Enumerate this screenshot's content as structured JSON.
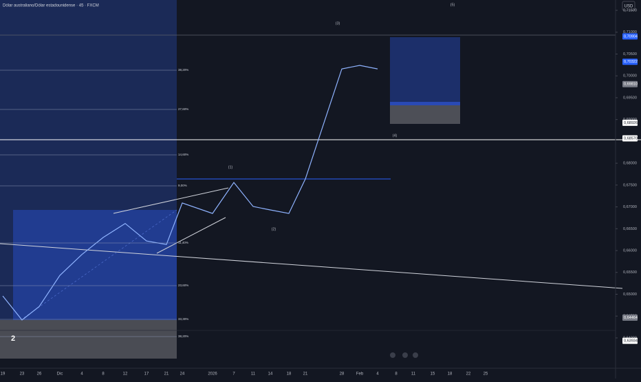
{
  "header": {
    "title": "Dólar australiano/Dólar estadounidense · 45 · FXCM",
    "currency_button": "USD"
  },
  "chart_data": {
    "type": "line",
    "color": "#8fb3ff",
    "categories": [
      "19",
      "23",
      "26",
      "Dic",
      "4",
      "8",
      "12",
      "17",
      "21",
      "24",
      "2026",
      "7",
      "11",
      "14",
      "18",
      "21",
      "28",
      "Feb",
      "4",
      "8",
      "11",
      "15",
      "18",
      "22",
      "25"
    ],
    "values": [
      0.6496,
      0.6441,
      0.6472,
      0.6543,
      0.6591,
      0.663,
      0.6662,
      0.6622,
      0.6614,
      0.6709,
      0.6685,
      0.6756,
      0.6701,
      0.6693,
      0.6685,
      0.6764,
      0.7016,
      0.7024,
      0.7016,
      null,
      null,
      null,
      null,
      null,
      null
    ],
    "ylim": [
      0.63306,
      0.71737
    ],
    "yticks": [
      {
        "value": 0.715,
        "label": "0,71500"
      },
      {
        "value": 0.71,
        "label": "0,71000"
      },
      {
        "value": 0.705,
        "label": "0,70500"
      },
      {
        "value": 0.7,
        "label": "0,70000"
      },
      {
        "value": 0.695,
        "label": "0,69500"
      },
      {
        "value": 0.69,
        "label": "0,69000"
      },
      {
        "value": 0.68,
        "label": "0,68000"
      },
      {
        "value": 0.675,
        "label": "0,67500"
      },
      {
        "value": 0.67,
        "label": "0,67000"
      },
      {
        "value": 0.665,
        "label": "0,66500"
      },
      {
        "value": 0.66,
        "label": "0,66000"
      },
      {
        "value": 0.655,
        "label": "0,65500"
      },
      {
        "value": 0.65,
        "label": "0,65000"
      },
      {
        "value": 0.645,
        "label": "0,64500"
      },
      {
        "value": 0.64,
        "label": "0,64000"
      }
    ],
    "price_labels": [
      {
        "value": 0.70904,
        "label": "0,70904",
        "color": "#2962ff"
      },
      {
        "value": 0.70322,
        "label": "0,70322",
        "color": "#2962ff"
      },
      {
        "value": 0.6981,
        "label": "0,69810",
        "color": "#787b86"
      },
      {
        "value": 0.68926,
        "label": "0,68926",
        "color": "#ffffff"
      },
      {
        "value": 0.6857,
        "label": "0,68570",
        "color": "#ffffff"
      },
      {
        "value": 0.64464,
        "label": "0,64464",
        "color": "#787b86"
      },
      {
        "value": 0.63934,
        "label": "0,63934",
        "color": "#ffffff"
      }
    ]
  },
  "fib_levels": [
    "38,20%",
    "27,60%",
    "14,60%",
    "9,00%",
    "11,40%",
    "23,60%",
    "33,30%",
    "38,20%"
  ],
  "wave_labels": [
    "(5)",
    "(3)",
    "(1)",
    "(2)",
    "(4)",
    "2"
  ]
}
